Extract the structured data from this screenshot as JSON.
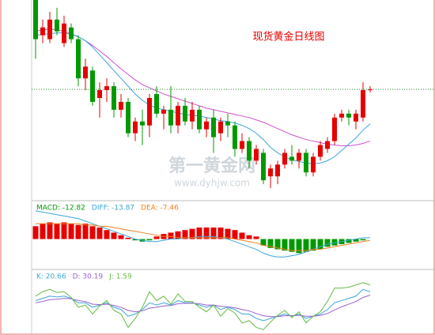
{
  "chart_data": [
    {
      "type": "candlestick",
      "title": "现货黄金日线图",
      "watermark": [
        "第一黄金网",
        "www.dyhjw.com"
      ],
      "ylim": [
        0,
        250
      ],
      "up_color": "#e60000",
      "down_color": "#009900",
      "last_price_line": true,
      "open": [
        250,
        205,
        200,
        225,
        195,
        215,
        200,
        150,
        160,
        125,
        135,
        140,
        110,
        120,
        80,
        95,
        90,
        130,
        105,
        110,
        90,
        115,
        95,
        110,
        85,
        100,
        80,
        95,
        90,
        60,
        70,
        45,
        55,
        25,
        25,
        40,
        50,
        45,
        55,
        30,
        50,
        60,
        70,
        100,
        105,
        95,
        100,
        135
      ],
      "high": [
        250,
        225,
        235,
        240,
        230,
        220,
        205,
        175,
        165,
        145,
        150,
        145,
        130,
        125,
        100,
        110,
        130,
        140,
        115,
        140,
        120,
        125,
        120,
        115,
        100,
        110,
        100,
        105,
        95,
        80,
        75,
        65,
        60,
        40,
        45,
        60,
        65,
        60,
        60,
        55,
        70,
        75,
        105,
        110,
        110,
        110,
        145,
        140
      ],
      "low": [
        175,
        195,
        195,
        205,
        190,
        195,
        140,
        135,
        115,
        100,
        120,
        100,
        100,
        75,
        70,
        65,
        75,
        100,
        85,
        80,
        80,
        90,
        85,
        80,
        75,
        55,
        70,
        75,
        50,
        55,
        35,
        40,
        15,
        10,
        15,
        35,
        40,
        35,
        25,
        25,
        45,
        55,
        65,
        95,
        90,
        85,
        95,
        132
      ],
      "close": [
        200,
        215,
        225,
        210,
        220,
        200,
        150,
        165,
        120,
        135,
        140,
        110,
        120,
        80,
        95,
        90,
        125,
        105,
        110,
        90,
        115,
        95,
        110,
        85,
        95,
        75,
        95,
        90,
        60,
        70,
        45,
        60,
        20,
        35,
        40,
        55,
        45,
        55,
        30,
        50,
        65,
        70,
        100,
        105,
        100,
        105,
        135,
        136
      ],
      "series": [
        {
          "color": "#d04fd0",
          "values": [
            210,
            212,
            213,
            212,
            210,
            207,
            203,
            198,
            192,
            185,
            178,
            170,
            162,
            155,
            148,
            142,
            138,
            134,
            130,
            127,
            124,
            121,
            118,
            115,
            112,
            110,
            108,
            106,
            104,
            102,
            100,
            97,
            94,
            90,
            86,
            82,
            78,
            75,
            72,
            70,
            68,
            66,
            65,
            64,
            64,
            65,
            67,
            70
          ]
        },
        {
          "color": "#3aa6d8",
          "values": [
            205,
            206,
            207,
            208,
            208,
            206,
            203,
            198,
            190,
            180,
            170,
            160,
            150,
            140,
            130,
            122,
            116,
            112,
            110,
            108,
            106,
            104,
            103,
            102,
            100,
            98,
            96,
            95,
            93,
            90,
            86,
            80,
            72,
            62,
            55,
            50,
            46,
            44,
            42,
            41,
            42,
            45,
            50,
            58,
            66,
            74,
            84,
            92
          ]
        }
      ]
    },
    {
      "type": "macd",
      "ylim": [
        -20,
        25
      ],
      "pos_color": "#e60000",
      "neg_color": "#009900",
      "legend": [
        {
          "text": "MACD: -12.82",
          "color": "#009900"
        },
        {
          "text": "DIFF: -13.87",
          "color": "#3aa6d8"
        },
        {
          "text": "DEA: -7.46",
          "color": "#f08020"
        }
      ],
      "values": [
        10,
        12,
        13,
        12,
        13,
        12,
        11,
        12,
        10,
        9,
        7,
        5,
        3,
        1,
        -1,
        -2,
        -1,
        2,
        4,
        5,
        6,
        7,
        8,
        9,
        9,
        9,
        9,
        8,
        7,
        5,
        3,
        2,
        -5,
        -7,
        -8,
        -9,
        -10,
        -11,
        -10,
        -9,
        -8,
        -6,
        -5,
        -4,
        -3,
        -2,
        -1,
        0
      ],
      "series": [
        {
          "color": "#3aa6d8",
          "values": [
            22,
            21,
            20,
            19,
            18,
            17,
            16,
            14,
            12,
            10,
            8,
            6,
            4,
            2,
            0,
            -1,
            -2,
            -2,
            -1,
            0,
            0,
            1,
            1,
            2,
            2,
            2,
            1,
            0,
            -2,
            -4,
            -6,
            -8,
            -11,
            -13,
            -14,
            -14,
            -13,
            -12,
            -10,
            -8,
            -6,
            -4,
            -3,
            -2,
            -1,
            0,
            1,
            1
          ]
        },
        {
          "color": "#f08020",
          "values": [
            12,
            12,
            12,
            12,
            12,
            12,
            12,
            11,
            11,
            10,
            10,
            9,
            8,
            7,
            6,
            5,
            4,
            3,
            2,
            2,
            1,
            1,
            1,
            1,
            1,
            1,
            1,
            1,
            0,
            -1,
            -2,
            -3,
            -5,
            -6,
            -7,
            -8,
            -9,
            -9,
            -9,
            -8,
            -8,
            -7,
            -6,
            -5,
            -4,
            -3,
            -2,
            -1
          ]
        }
      ]
    },
    {
      "type": "kdj",
      "ylim": [
        -10,
        105
      ],
      "legend": [
        {
          "text": "K: 20.66",
          "color": "#3aa6d8"
        },
        {
          "text": "D: 30.19",
          "color": "#9a5fd0"
        },
        {
          "text": "J: 1.59",
          "color": "#66bb44"
        }
      ],
      "series": [
        {
          "color": "#3aa6d8",
          "values": [
            60,
            65,
            70,
            68,
            70,
            65,
            55,
            55,
            45,
            50,
            55,
            45,
            40,
            25,
            30,
            40,
            55,
            50,
            55,
            50,
            60,
            55,
            55,
            50,
            45,
            50,
            40,
            45,
            40,
            30,
            30,
            20,
            15,
            20,
            25,
            30,
            25,
            30,
            20,
            25,
            30,
            40,
            55,
            60,
            65,
            70,
            85,
            80
          ]
        },
        {
          "color": "#9a5fd0",
          "values": [
            55,
            58,
            62,
            63,
            65,
            64,
            60,
            58,
            52,
            51,
            52,
            49,
            45,
            38,
            35,
            37,
            43,
            45,
            48,
            49,
            53,
            54,
            54,
            53,
            50,
            50,
            47,
            46,
            44,
            40,
            37,
            31,
            26,
            24,
            24,
            26,
            26,
            27,
            25,
            25,
            27,
            31,
            39,
            46,
            52,
            58,
            67,
            72
          ]
        },
        {
          "color": "#66bb44",
          "values": [
            70,
            80,
            85,
            78,
            80,
            67,
            45,
            50,
            30,
            48,
            60,
            38,
            30,
            0,
            20,
            45,
            80,
            60,
            70,
            52,
            75,
            58,
            58,
            45,
            35,
            50,
            25,
            42,
            32,
            10,
            15,
            0,
            -5,
            12,
            27,
            38,
            22,
            35,
            10,
            25,
            35,
            58,
            88,
            88,
            90,
            95,
            100,
            95
          ]
        }
      ]
    }
  ]
}
